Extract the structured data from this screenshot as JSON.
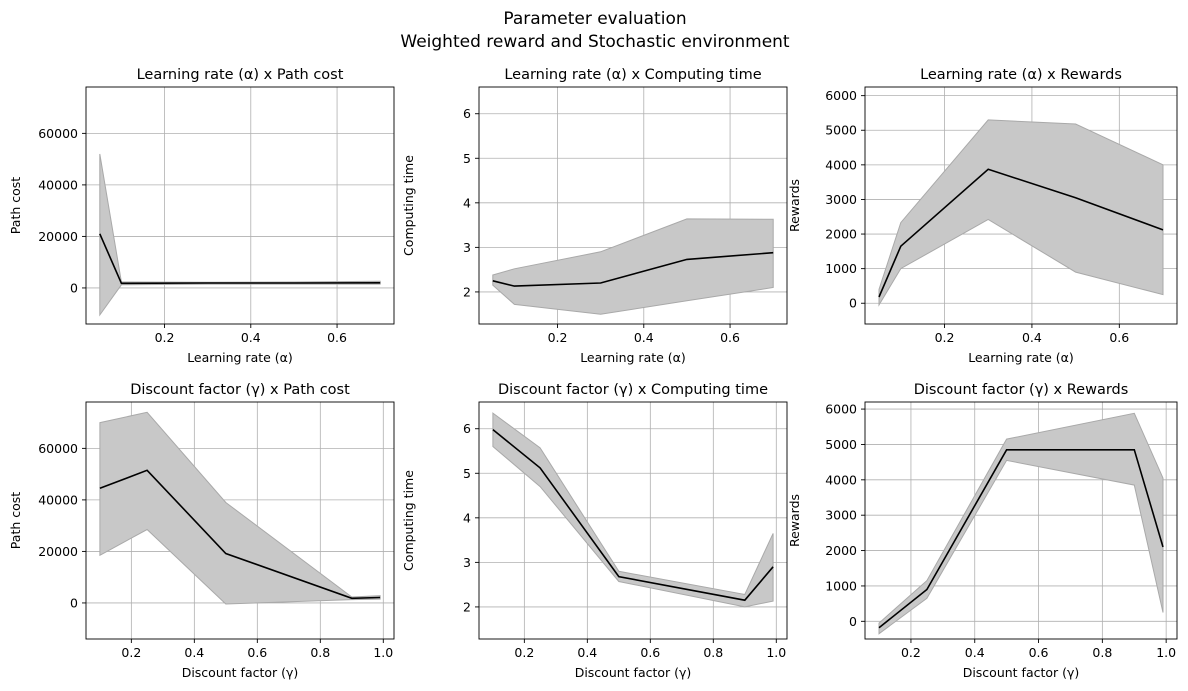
{
  "suptitle": [
    "Parameter evaluation",
    "Weighted reward and Stochastic environment"
  ],
  "colors": {
    "band_fill": "#c8c8c8",
    "band_edge": "#a9a9a9",
    "mean_line": "#000000",
    "grid": "#b0b0b0"
  },
  "chart_data": [
    {
      "type": "line",
      "title": "Learning rate (α) x Path cost",
      "xlabel": "Learning rate (α)",
      "ylabel": "Path cost",
      "grid": true,
      "xlim": [
        0.018,
        0.732
      ],
      "ylim": [
        -14000,
        78000
      ],
      "xticks": [
        {
          "v": 0.2,
          "label": "0.2"
        },
        {
          "v": 0.4,
          "label": "0.4"
        },
        {
          "v": 0.6,
          "label": "0.6"
        }
      ],
      "yticks": [
        {
          "v": 0,
          "label": "0"
        },
        {
          "v": 20000,
          "label": "20000"
        },
        {
          "v": 40000,
          "label": "40000"
        },
        {
          "v": 60000,
          "label": "60000"
        }
      ],
      "x": [
        0.05,
        0.1,
        0.3,
        0.5,
        0.7
      ],
      "y": [
        21000,
        1800,
        1900,
        1900,
        2000
      ],
      "lower": [
        -10500,
        1200,
        1500,
        1500,
        1500
      ],
      "upper": [
        52000,
        2300,
        2200,
        2300,
        2600
      ]
    },
    {
      "type": "line",
      "title": "Learning rate (α) x Computing time",
      "xlabel": "Learning rate (α)",
      "ylabel": "Computing time",
      "grid": true,
      "xlim": [
        0.018,
        0.732
      ],
      "ylim": [
        1.28,
        6.6
      ],
      "xticks": [
        {
          "v": 0.2,
          "label": "0.2"
        },
        {
          "v": 0.4,
          "label": "0.4"
        },
        {
          "v": 0.6,
          "label": "0.6"
        }
      ],
      "yticks": [
        {
          "v": 2,
          "label": "2"
        },
        {
          "v": 3,
          "label": "3"
        },
        {
          "v": 4,
          "label": "4"
        },
        {
          "v": 5,
          "label": "5"
        },
        {
          "v": 6,
          "label": "6"
        }
      ],
      "x": [
        0.05,
        0.1,
        0.3,
        0.5,
        0.7
      ],
      "y": [
        2.25,
        2.13,
        2.2,
        2.73,
        2.88
      ],
      "lower": [
        2.15,
        1.72,
        1.5,
        1.8,
        2.1
      ],
      "upper": [
        2.38,
        2.52,
        2.9,
        3.64,
        3.63
      ]
    },
    {
      "type": "line",
      "title": "Learning rate (α) x Rewards",
      "xlabel": "Learning rate (α)",
      "ylabel": "Rewards",
      "grid": true,
      "xlim": [
        0.018,
        0.732
      ],
      "ylim": [
        -600,
        6250
      ],
      "xticks": [
        {
          "v": 0.2,
          "label": "0.2"
        },
        {
          "v": 0.4,
          "label": "0.4"
        },
        {
          "v": 0.6,
          "label": "0.6"
        }
      ],
      "yticks": [
        {
          "v": 0,
          "label": "0"
        },
        {
          "v": 1000,
          "label": "1000"
        },
        {
          "v": 2000,
          "label": "2000"
        },
        {
          "v": 3000,
          "label": "3000"
        },
        {
          "v": 4000,
          "label": "4000"
        },
        {
          "v": 5000,
          "label": "5000"
        },
        {
          "v": 6000,
          "label": "6000"
        }
      ],
      "x": [
        0.05,
        0.1,
        0.3,
        0.5,
        0.7
      ],
      "y": [
        180,
        1650,
        3870,
        3050,
        2120
      ],
      "lower": [
        -50,
        1000,
        2420,
        900,
        250
      ],
      "upper": [
        400,
        2330,
        5300,
        5180,
        4000
      ]
    },
    {
      "type": "line",
      "title": "Discount factor (γ) x Path cost",
      "xlabel": "Discount factor (γ)",
      "ylabel": "Path cost",
      "grid": true,
      "xlim": [
        0.056,
        1.034
      ],
      "ylim": [
        -14000,
        78000
      ],
      "xticks": [
        {
          "v": 0.2,
          "label": "0.2"
        },
        {
          "v": 0.4,
          "label": "0.4"
        },
        {
          "v": 0.6,
          "label": "0.6"
        },
        {
          "v": 0.8,
          "label": "0.8"
        },
        {
          "v": 1.0,
          "label": "1.0"
        }
      ],
      "yticks": [
        {
          "v": 0,
          "label": "0"
        },
        {
          "v": 20000,
          "label": "20000"
        },
        {
          "v": 40000,
          "label": "40000"
        },
        {
          "v": 60000,
          "label": "60000"
        }
      ],
      "x": [
        0.1,
        0.25,
        0.5,
        0.9,
        0.99
      ],
      "y": [
        44500,
        51500,
        19200,
        1800,
        2100
      ],
      "lower": [
        18500,
        28500,
        -400,
        1300,
        1500
      ],
      "upper": [
        70000,
        74000,
        39000,
        2300,
        2800
      ]
    },
    {
      "type": "line",
      "title": "Discount factor (γ) x Computing time",
      "xlabel": "Discount factor (γ)",
      "ylabel": "Computing time",
      "grid": true,
      "xlim": [
        0.056,
        1.034
      ],
      "ylim": [
        1.28,
        6.6
      ],
      "xticks": [
        {
          "v": 0.2,
          "label": "0.2"
        },
        {
          "v": 0.4,
          "label": "0.4"
        },
        {
          "v": 0.6,
          "label": "0.6"
        },
        {
          "v": 0.8,
          "label": "0.8"
        },
        {
          "v": 1.0,
          "label": "1.0"
        }
      ],
      "yticks": [
        {
          "v": 2,
          "label": "2"
        },
        {
          "v": 3,
          "label": "3"
        },
        {
          "v": 4,
          "label": "4"
        },
        {
          "v": 5,
          "label": "5"
        },
        {
          "v": 6,
          "label": "6"
        }
      ],
      "x": [
        0.1,
        0.25,
        0.5,
        0.9,
        0.99
      ],
      "y": [
        5.98,
        5.12,
        2.68,
        2.15,
        2.9
      ],
      "lower": [
        5.6,
        4.7,
        2.57,
        2.0,
        2.13
      ],
      "upper": [
        6.35,
        5.57,
        2.8,
        2.28,
        3.65
      ]
    },
    {
      "type": "line",
      "title": "Discount factor (γ) x Rewards",
      "xlabel": "Discount factor (γ)",
      "ylabel": "Rewards",
      "grid": true,
      "xlim": [
        0.056,
        1.034
      ],
      "ylim": [
        -500,
        6200
      ],
      "xticks": [
        {
          "v": 0.2,
          "label": "0.2"
        },
        {
          "v": 0.4,
          "label": "0.4"
        },
        {
          "v": 0.6,
          "label": "0.6"
        },
        {
          "v": 0.8,
          "label": "0.8"
        },
        {
          "v": 1.0,
          "label": "1.0"
        }
      ],
      "yticks": [
        {
          "v": 0,
          "label": "0"
        },
        {
          "v": 1000,
          "label": "1000"
        },
        {
          "v": 2000,
          "label": "2000"
        },
        {
          "v": 3000,
          "label": "3000"
        },
        {
          "v": 4000,
          "label": "4000"
        },
        {
          "v": 5000,
          "label": "5000"
        },
        {
          "v": 6000,
          "label": "6000"
        }
      ],
      "x": [
        0.1,
        0.25,
        0.5,
        0.9,
        0.99
      ],
      "y": [
        -180,
        900,
        4850,
        4850,
        2100
      ],
      "lower": [
        -350,
        650,
        4550,
        3850,
        250
      ],
      "upper": [
        -50,
        1150,
        5150,
        5880,
        4050
      ]
    }
  ]
}
